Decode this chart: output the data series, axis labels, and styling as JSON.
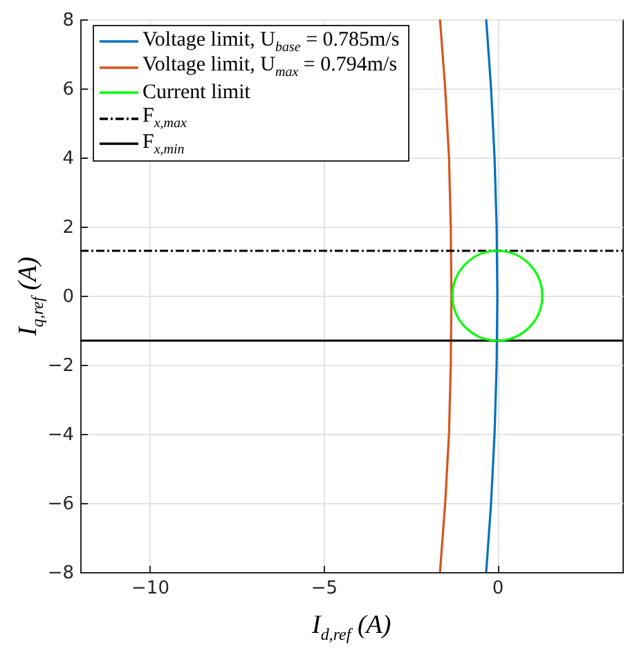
{
  "chart_data": {
    "type": "line",
    "xlabel": "I$_{d,ref}$ (A)",
    "ylabel": "I$_{q,ref}$ (A)",
    "xlim": [
      -12,
      3.6
    ],
    "ylim": [
      -8,
      8
    ],
    "xticks": [
      -10,
      -5,
      0
    ],
    "yticks": [
      -8,
      -6,
      -4,
      -2,
      0,
      2,
      4,
      6,
      8
    ],
    "grid": true,
    "legend": "top left",
    "annotations": [
      "Current limit"
    ],
    "series": [
      {
        "name": "Voltage limit, U$_{base}$ = 0.785m/s",
        "color": "#0072bd",
        "x": [
          -0.32,
          -0.18,
          -0.08,
          -0.02,
          0,
          -0.02,
          -0.08,
          -0.18,
          -0.32
        ],
        "values": [
          -8,
          -6,
          -4,
          -2,
          0,
          2,
          4,
          6,
          8
        ]
      },
      {
        "name": "Voltage limit, U$_{max}$ = 0.794m/s",
        "color": "#d95319",
        "x": [
          -1.65,
          -1.5,
          -1.39,
          -1.34,
          -1.32,
          -1.34,
          -1.39,
          -1.5,
          -1.65
        ],
        "values": [
          -8,
          -6,
          -4,
          -2,
          0,
          2,
          4,
          6,
          8
        ]
      },
      {
        "name": "F$_{x,max}$",
        "color": "#000000",
        "line_style": "dashed",
        "x": [
          -12,
          3.6
        ],
        "values": [
          1.3,
          1.3
        ]
      },
      {
        "name": "F$_{x,min}$",
        "color": "#000000",
        "x": [
          -12,
          3.6
        ],
        "values": [
          -1.3,
          -1.3
        ]
      }
    ]
  }
}
